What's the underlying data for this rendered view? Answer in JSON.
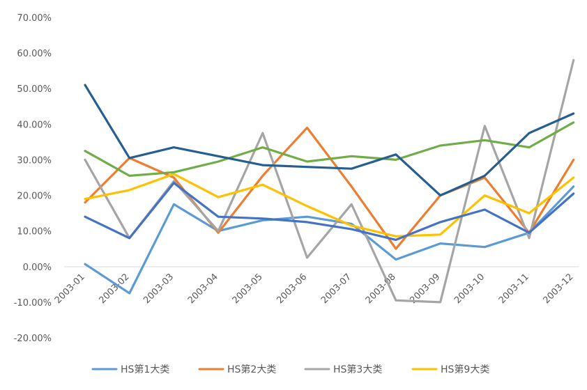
{
  "chart_data": {
    "type": "line",
    "title": "",
    "xlabel": "",
    "ylabel": "",
    "ylim": [
      -20,
      70
    ],
    "ytick_step": 10,
    "ytick_labels": [
      "70.00%",
      "60.00%",
      "50.00%",
      "40.00%",
      "30.00%",
      "20.00%",
      "10.00%",
      "0.00%",
      "-10.00%",
      "-20.00%"
    ],
    "grid": false,
    "legend_position": "bottom",
    "categories": [
      "2003-01",
      "2003-02",
      "2003-03",
      "2003-04",
      "2003-05",
      "2003-06",
      "2003-07",
      "2003-08",
      "2003-09",
      "2003-10",
      "2003-11",
      "2003-12"
    ],
    "series": [
      {
        "name": "HS第1大类",
        "color": "#5b9bd5",
        "legend": true,
        "values": [
          0.7,
          -7.5,
          17.5,
          10.0,
          13.0,
          14.0,
          12.0,
          2.0,
          6.5,
          5.5,
          9.5,
          22.5
        ]
      },
      {
        "name": "HS第2大类",
        "color": "#ed7d31",
        "legend": true,
        "values": [
          18.0,
          30.5,
          25.0,
          9.5,
          25.5,
          39.0,
          22.5,
          5.0,
          20.0,
          25.0,
          9.5,
          30.0
        ]
      },
      {
        "name": "HS第3大类",
        "color": "#a5a5a5",
        "legend": true,
        "values": [
          30.0,
          8.0,
          24.0,
          10.0,
          37.5,
          2.5,
          17.5,
          -9.5,
          -10.0,
          39.5,
          8.0,
          58.0
        ]
      },
      {
        "name": "HS第9大类",
        "color": "#ffc000",
        "legend": true,
        "values": [
          19.0,
          21.5,
          26.0,
          19.5,
          23.0,
          17.0,
          11.5,
          8.5,
          9.0,
          20.0,
          15.0,
          25.0
        ]
      },
      {
        "name": "",
        "color": "#4472c4",
        "legend": false,
        "values": [
          14.0,
          8.0,
          23.5,
          14.0,
          13.5,
          12.5,
          10.5,
          7.5,
          12.5,
          16.0,
          9.5,
          20.5
        ]
      },
      {
        "name": "",
        "color": "#70ad47",
        "legend": false,
        "values": [
          32.5,
          25.5,
          26.5,
          29.5,
          33.5,
          29.5,
          31.0,
          30.0,
          34.0,
          35.5,
          33.5,
          40.5
        ]
      },
      {
        "name": "",
        "color": "#255e91",
        "legend": false,
        "values": [
          51.0,
          30.5,
          33.5,
          31.0,
          28.5,
          28.0,
          27.5,
          31.5,
          20.0,
          25.5,
          37.5,
          43.0
        ]
      }
    ]
  }
}
